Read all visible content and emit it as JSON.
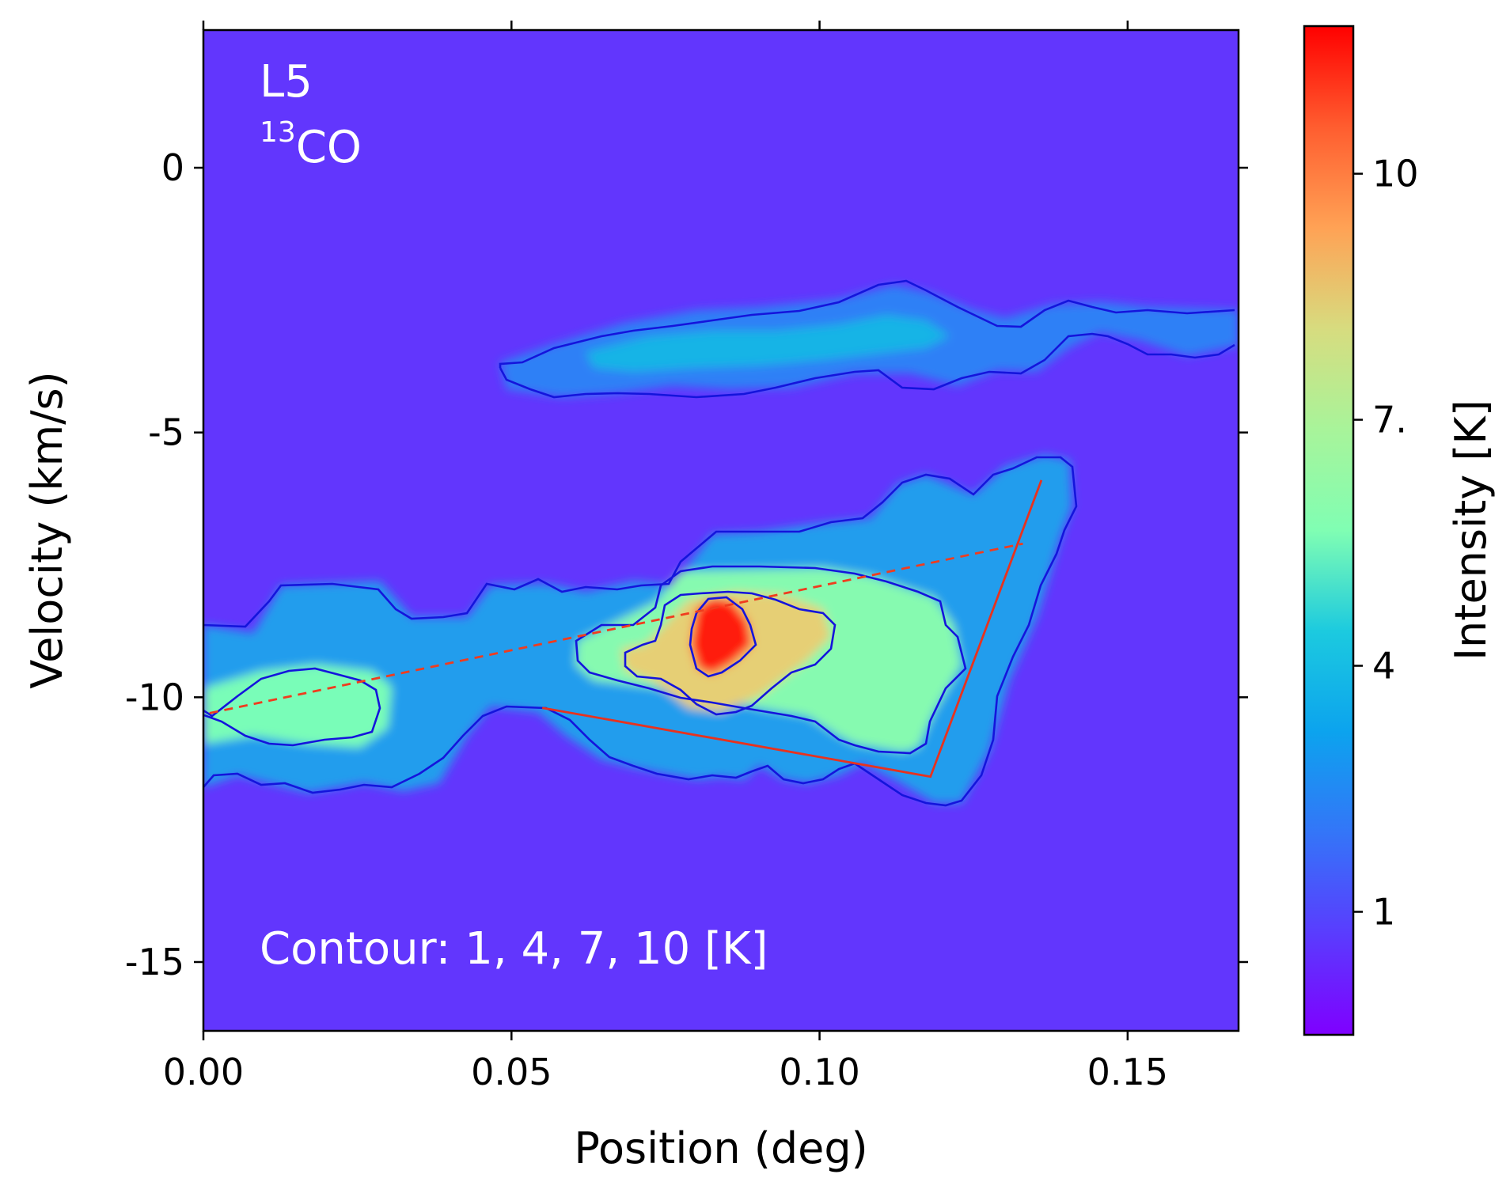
{
  "chart_data": {
    "type": "heatmap",
    "title": "",
    "xlabel": "Position (deg)",
    "ylabel": "Velocity (km/s)",
    "xlim": [
      0.0,
      0.168
    ],
    "ylim": [
      -16.3,
      2.6
    ],
    "xticks": [
      {
        "value": 0.0,
        "label": "0.00"
      },
      {
        "value": 0.05,
        "label": "0.05"
      },
      {
        "value": 0.1,
        "label": "0.10"
      },
      {
        "value": 0.15,
        "label": "0.15"
      }
    ],
    "yticks": [
      {
        "value": 0,
        "label": "0"
      },
      {
        "value": -5,
        "label": "-5"
      },
      {
        "value": -10,
        "label": "-10"
      },
      {
        "value": -15,
        "label": "-15"
      }
    ],
    "colorbar": {
      "label": "Intensity [K]",
      "colormap": "rainbow",
      "range": [
        -0.5,
        11.8
      ],
      "ticks": [
        {
          "value": 1,
          "label": "1"
        },
        {
          "value": 4,
          "label": "4"
        },
        {
          "value": 7,
          "label": "7."
        },
        {
          "value": 10,
          "label": "10"
        }
      ]
    },
    "annotations": {
      "region": "L5",
      "line_sup": "13",
      "line_main": "CO",
      "contour_note": "Contour: 1, 4, 7, 10 [K]"
    },
    "contour_levels": [
      1,
      4,
      7,
      10
    ],
    "emission_components": [
      {
        "name": "upper-filament",
        "x": [
          0.048,
          0.168
        ],
        "v_center": -3.4,
        "v_width": 1.1,
        "peak_K": 3.5
      },
      {
        "name": "main-structure",
        "x": [
          0.0,
          0.14
        ],
        "v_range": [
          -12.0,
          -5.5
        ],
        "peak_K": 11.5,
        "peak_position": [
          0.082,
          -8.7
        ]
      }
    ],
    "lines": [
      {
        "name": "dashed-red-line",
        "style": "dashed",
        "color": "#f03c1e",
        "points": [
          [
            0.001,
            -10.3
          ],
          [
            0.133,
            -7.1
          ]
        ]
      },
      {
        "name": "solid-red-line",
        "style": "solid",
        "color": "#e8321e",
        "points": [
          [
            0.055,
            -10.2
          ],
          [
            0.118,
            -11.5
          ],
          [
            0.136,
            -5.9
          ]
        ]
      }
    ],
    "contour_color": "#1414dc"
  }
}
